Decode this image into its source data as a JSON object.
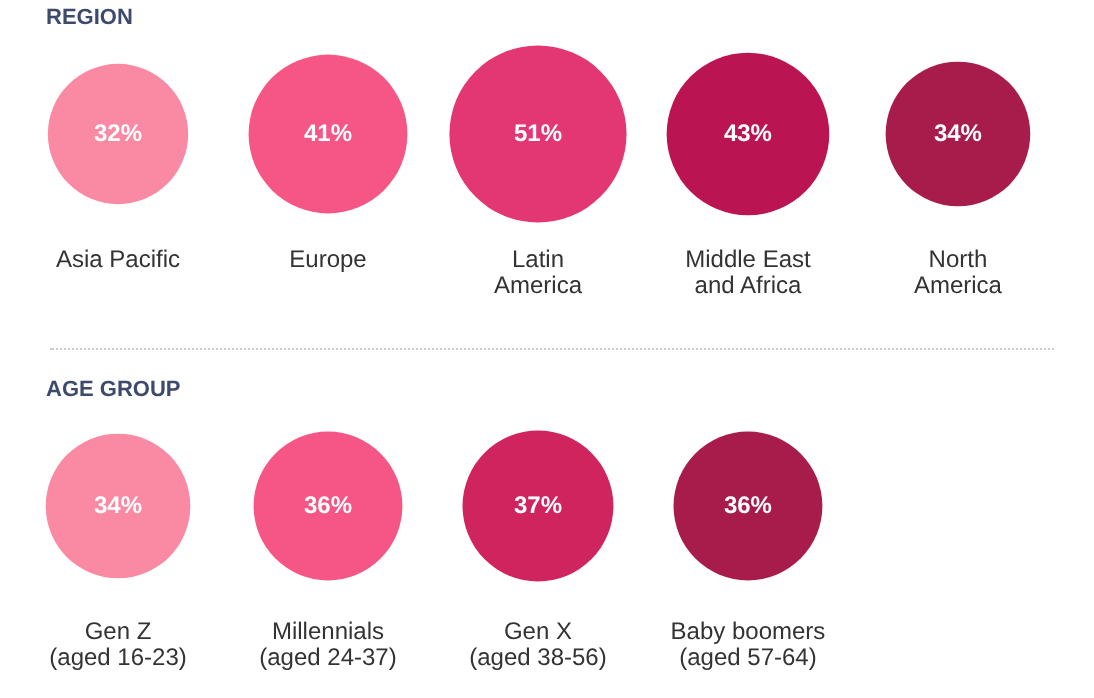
{
  "chart_data": [
    {
      "type": "other",
      "title": "REGION",
      "categories": [
        "Asia Pacific",
        "Europe",
        "Latin America",
        "Middle East and Africa",
        "North America"
      ],
      "values": [
        32,
        41,
        51,
        43,
        34
      ],
      "value_labels": [
        "32%",
        "41%",
        "51%",
        "43%",
        "34%"
      ],
      "colors": [
        "#fa8aa4",
        "#f65685",
        "#e23772",
        "#ba1452",
        "#a71c4b"
      ]
    },
    {
      "type": "other",
      "title": "AGE GROUP",
      "categories": [
        "Gen Z (aged 16-23)",
        "Millennials (aged 24-37)",
        "Gen X (aged 38-56)",
        "Baby boomers (aged 57-64)"
      ],
      "values": [
        34,
        36,
        37,
        36
      ],
      "value_labels": [
        "34%",
        "36%",
        "37%",
        "36%"
      ],
      "colors": [
        "#fa8aa4",
        "#f65685",
        "#d0245f",
        "#a71c4b"
      ]
    }
  ]
}
